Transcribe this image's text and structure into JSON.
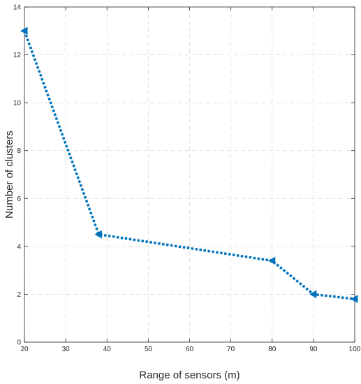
{
  "chart_data": {
    "type": "line",
    "title": "",
    "xlabel": "Range of sensors (m)",
    "ylabel": "Number of clusters",
    "xlim": [
      20,
      100
    ],
    "ylim": [
      0,
      14
    ],
    "xticks": [
      20,
      30,
      40,
      50,
      60,
      70,
      80,
      90,
      100
    ],
    "yticks": [
      0,
      2,
      4,
      6,
      8,
      10,
      12,
      14
    ],
    "grid": true,
    "legend": "none",
    "series": [
      {
        "color": "#0072BD",
        "line_style": "dotted",
        "marker": "left-triangle",
        "x": [
          20,
          38,
          80,
          90,
          100
        ],
        "y": [
          13,
          4.5,
          3.4,
          2.0,
          1.8
        ]
      }
    ]
  }
}
